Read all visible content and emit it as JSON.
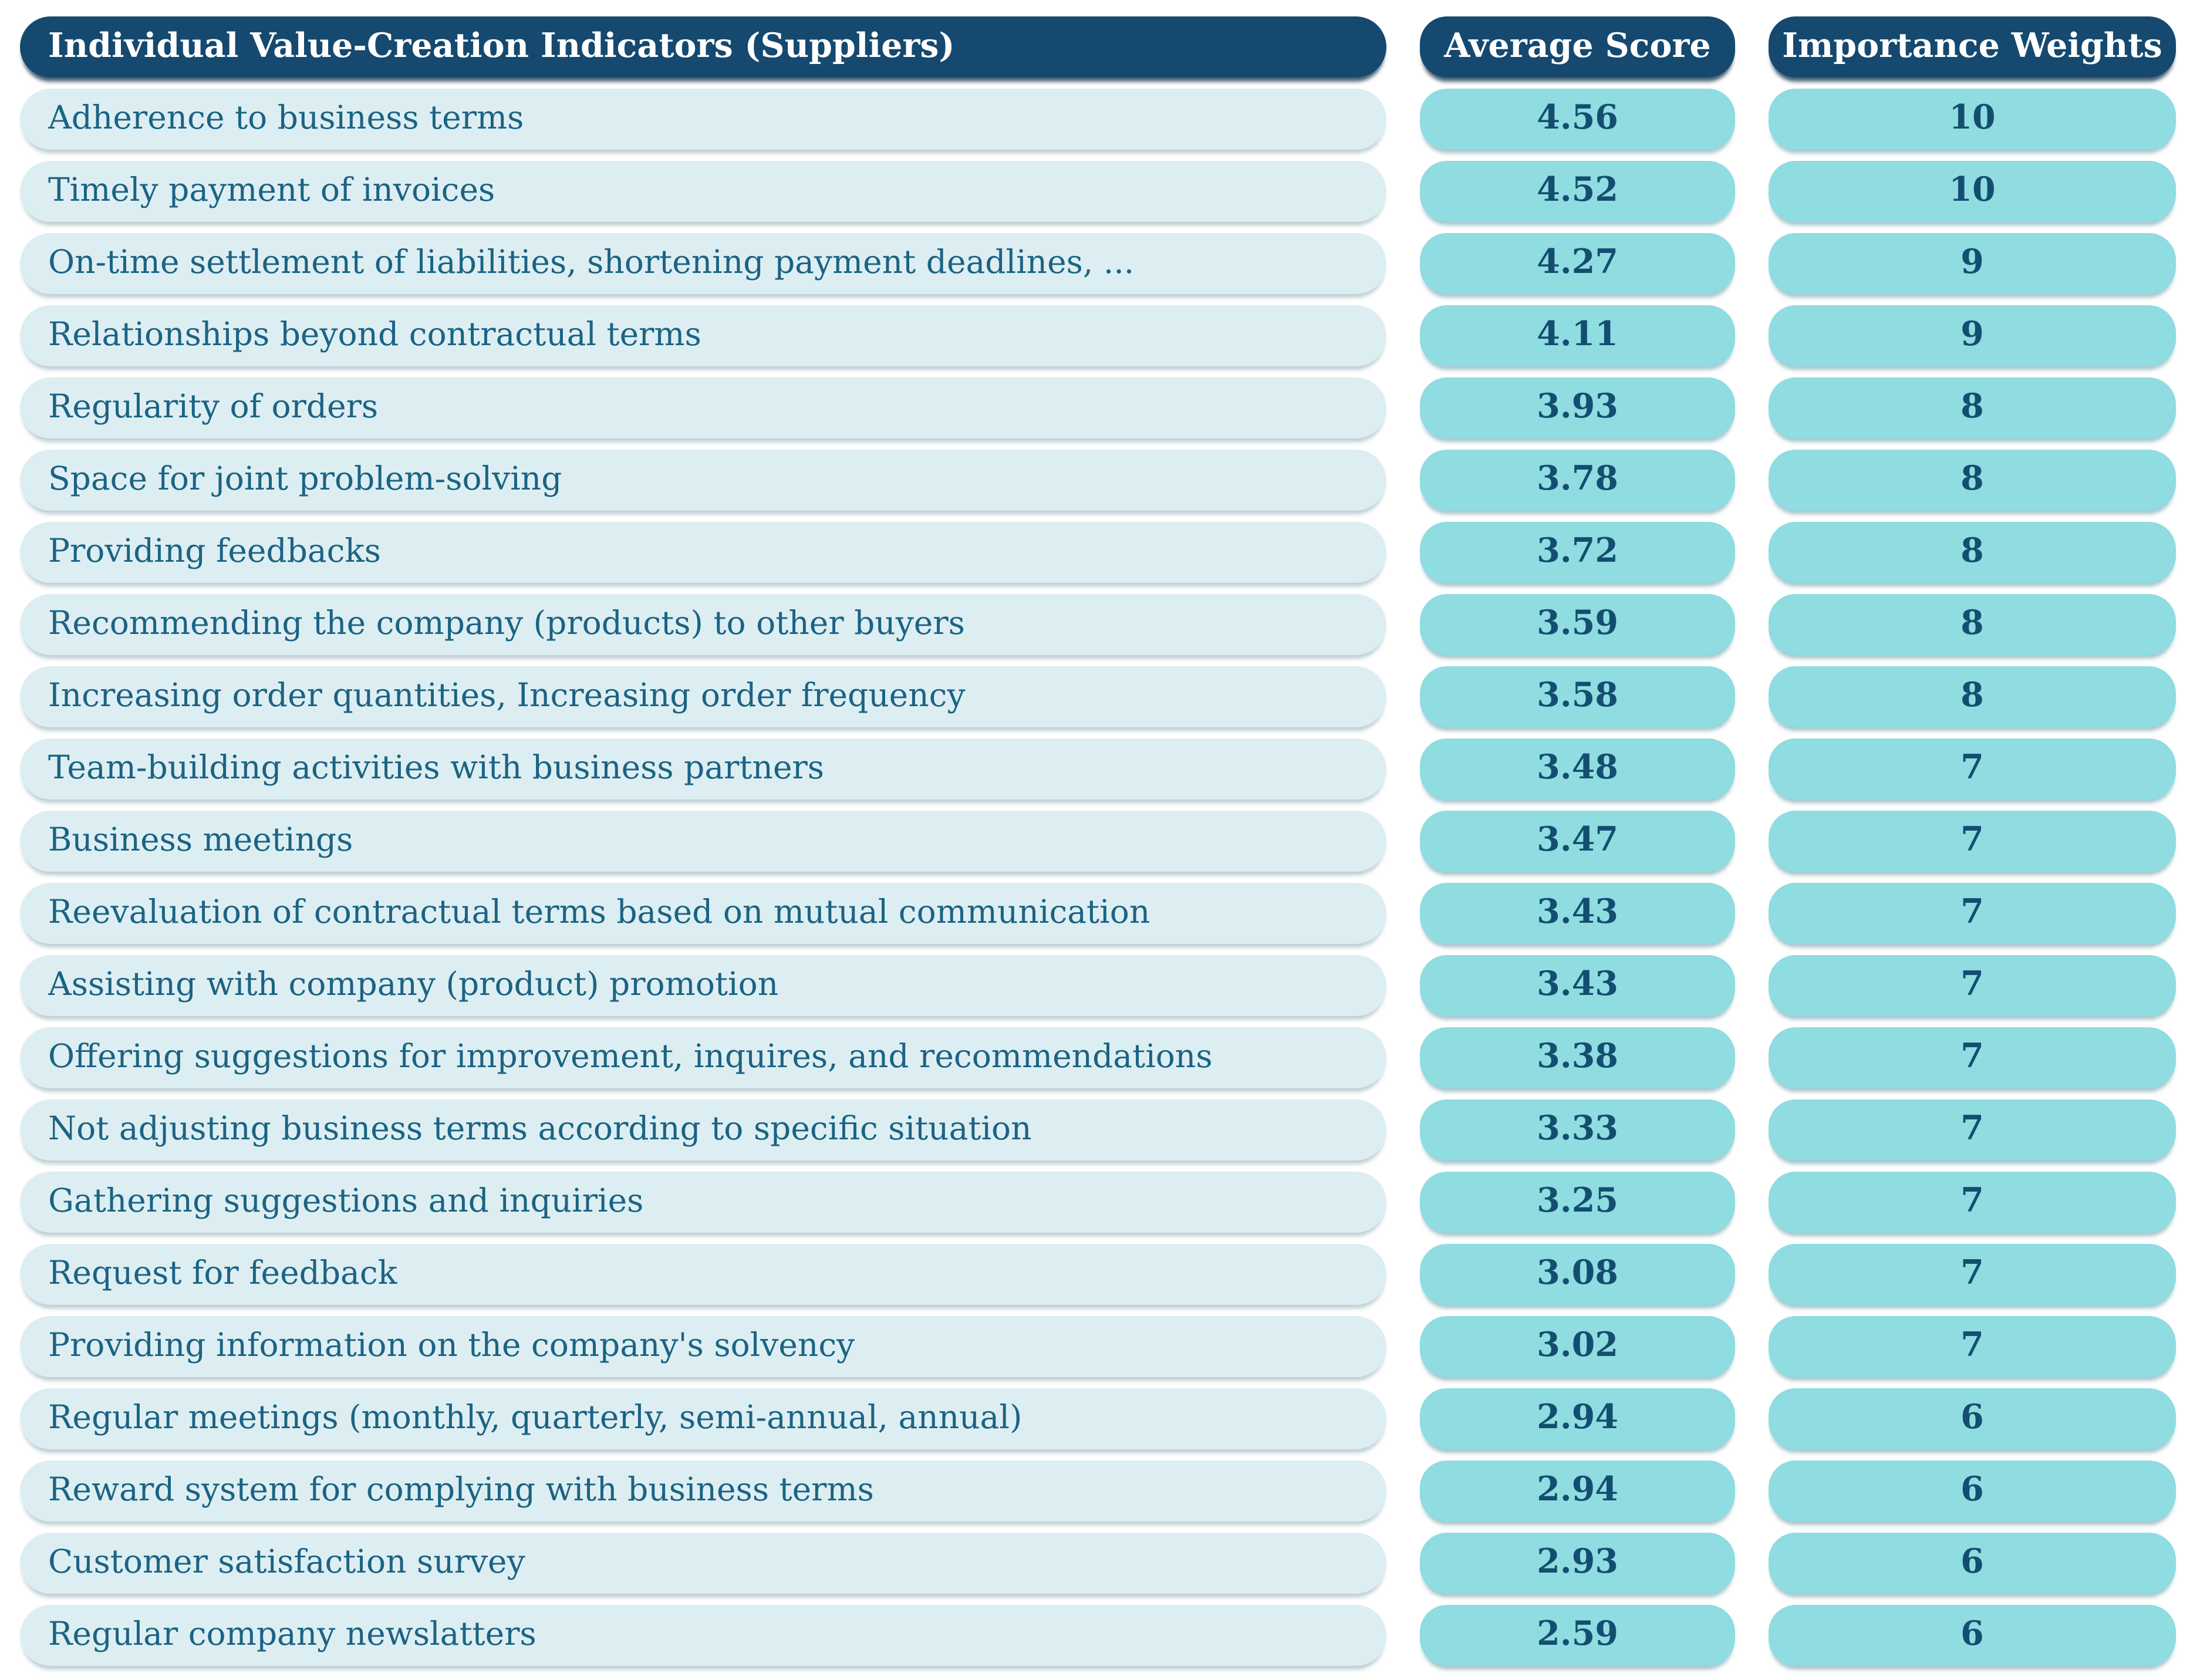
{
  "table": {
    "header": {
      "indicator_label": "Individual Value-Creation Indicators (Suppliers)",
      "score_label": "Average Score",
      "weight_label": "Importance Weights"
    },
    "rows": [
      {
        "indicator": "Adherence to business terms",
        "score": "4.56",
        "weight": "10"
      },
      {
        "indicator": "Timely payment of invoices",
        "score": "4.52",
        "weight": "10"
      },
      {
        "indicator": "On-time settlement of liabilities, shortening payment deadlines, ...",
        "score": "4.27",
        "weight": "9"
      },
      {
        "indicator": "Relationships beyond contractual terms",
        "score": "4.11",
        "weight": "9"
      },
      {
        "indicator": "Regularity of orders",
        "score": "3.93",
        "weight": "8"
      },
      {
        "indicator": "Space for joint problem-solving",
        "score": "3.78",
        "weight": "8"
      },
      {
        "indicator": "Providing feedbacks",
        "score": "3.72",
        "weight": "8"
      },
      {
        "indicator": "Recommending the company (products) to other buyers",
        "score": "3.59",
        "weight": "8"
      },
      {
        "indicator": "Increasing order quantities, Increasing order frequency",
        "score": "3.58",
        "weight": "8"
      },
      {
        "indicator": "Team-building activities with business partners",
        "score": "3.48",
        "weight": "7"
      },
      {
        "indicator": "Business meetings",
        "score": "3.47",
        "weight": "7"
      },
      {
        "indicator": "Reevaluation of contractual terms based on mutual communication",
        "score": "3.43",
        "weight": "7"
      },
      {
        "indicator": "Assisting with company (product) promotion",
        "score": "3.43",
        "weight": "7"
      },
      {
        "indicator": "Offering suggestions for improvement, inquires, and recommendations",
        "score": "3.38",
        "weight": "7"
      },
      {
        "indicator": "Not adjusting business terms according to specific situation",
        "score": "3.33",
        "weight": "7"
      },
      {
        "indicator": "Gathering suggestions and inquiries",
        "score": "3.25",
        "weight": "7"
      },
      {
        "indicator": "Request for feedback",
        "score": "3.08",
        "weight": "7"
      },
      {
        "indicator": "Providing information on the company's solvency",
        "score": "3.02",
        "weight": "7"
      },
      {
        "indicator": "Regular meetings (monthly, quarterly, semi-annual, annual)",
        "score": "2.94",
        "weight": "6"
      },
      {
        "indicator": "Reward system for complying with business terms",
        "score": "2.94",
        "weight": "6"
      },
      {
        "indicator": "Customer satisfaction survey",
        "score": "2.93",
        "weight": "6"
      },
      {
        "indicator": "Regular company newslatters",
        "score": "2.59",
        "weight": "6"
      }
    ]
  },
  "colors": {
    "header_bg": "#15496f",
    "header_text": "#ffffff",
    "row_bg": "#ddeef2",
    "row_text": "#1b6384",
    "value_pill_bg": "#8fdce1",
    "value_text": "#134e70"
  },
  "chart_data": {
    "type": "table",
    "title": "Individual Value-Creation Indicators (Suppliers)",
    "columns": [
      "Individual Value-Creation Indicators (Suppliers)",
      "Average Score",
      "Importance Weights"
    ],
    "rows": [
      [
        "Adherence to business terms",
        4.56,
        10
      ],
      [
        "Timely payment of invoices",
        4.52,
        10
      ],
      [
        "On-time settlement of liabilities, shortening payment deadlines, ...",
        4.27,
        9
      ],
      [
        "Relationships beyond contractual terms",
        4.11,
        9
      ],
      [
        "Regularity of orders",
        3.93,
        8
      ],
      [
        "Space for joint problem-solving",
        3.78,
        8
      ],
      [
        "Providing feedbacks",
        3.72,
        8
      ],
      [
        "Recommending the company (products) to other buyers",
        3.59,
        8
      ],
      [
        "Increasing order quantities, Increasing order frequency",
        3.58,
        8
      ],
      [
        "Team-building activities with business partners",
        3.48,
        7
      ],
      [
        "Business meetings",
        3.47,
        7
      ],
      [
        "Reevaluation of contractual terms based on mutual communication",
        3.43,
        7
      ],
      [
        "Assisting with company (product) promotion",
        3.43,
        7
      ],
      [
        "Offering suggestions for improvement, inquires, and recommendations",
        3.38,
        7
      ],
      [
        "Not adjusting business terms according to specific situation",
        3.33,
        7
      ],
      [
        "Gathering suggestions and inquiries",
        3.25,
        7
      ],
      [
        "Request for feedback",
        3.08,
        7
      ],
      [
        "Providing information on the company's solvency",
        3.02,
        7
      ],
      [
        "Regular meetings (monthly, quarterly, semi-annual, annual)",
        2.94,
        6
      ],
      [
        "Reward system for complying with business terms",
        2.94,
        6
      ],
      [
        "Customer satisfaction survey",
        2.93,
        6
      ],
      [
        "Regular company newslatters",
        2.59,
        6
      ]
    ]
  }
}
